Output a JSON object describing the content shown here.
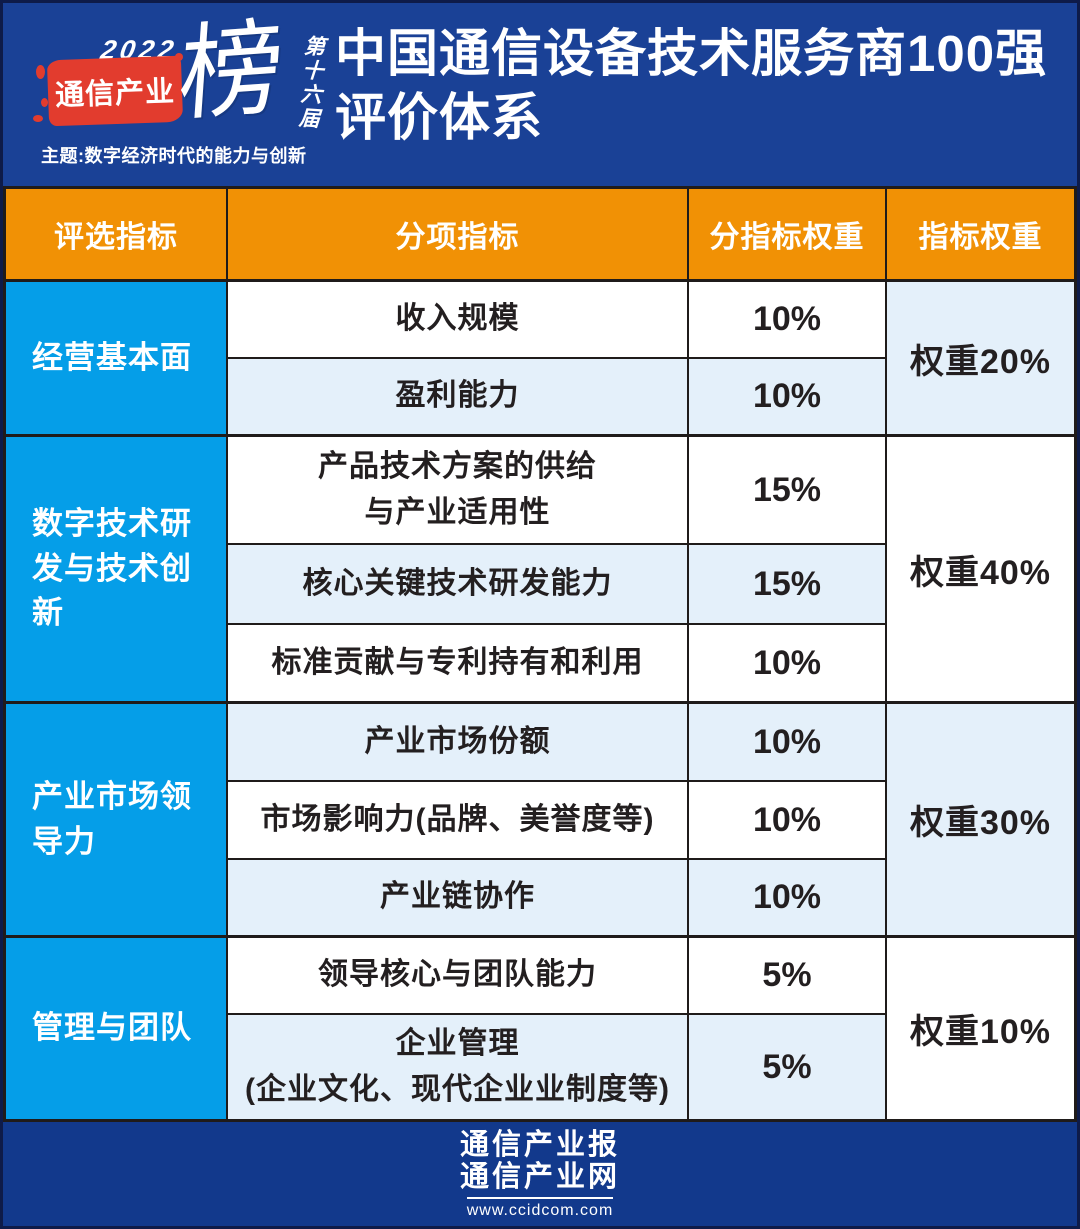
{
  "logo": {
    "year": "2022",
    "brand": "通信产业",
    "rank_char": "榜",
    "edition": "第十六届",
    "slogan": "主题:数字经济时代的能力与创新"
  },
  "title": {
    "line1": "中国通信设备技术服务商100强",
    "line2": "评价体系"
  },
  "table": {
    "headers": [
      "评选指标",
      "分项指标",
      "分指标权重",
      "指标权重"
    ],
    "groups": [
      {
        "category": "经营基本面",
        "weight": "权重20%",
        "rows": [
          {
            "label": "收入规模",
            "pct": "10%"
          },
          {
            "label": "盈利能力",
            "pct": "10%"
          }
        ]
      },
      {
        "category": "数字技术研发与技术创新",
        "weight": "权重40%",
        "rows": [
          {
            "label": "产品技术方案的供给\n与产业适用性",
            "pct": "15%"
          },
          {
            "label": "核心关键技术研发能力",
            "pct": "15%"
          },
          {
            "label": "标准贡献与专利持有和利用",
            "pct": "10%"
          }
        ]
      },
      {
        "category": "产业市场领导力",
        "weight": "权重30%",
        "rows": [
          {
            "label": "产业市场份额",
            "pct": "10%"
          },
          {
            "label": "市场影响力(品牌、美誉度等)",
            "pct": "10%"
          },
          {
            "label": "产业链协作",
            "pct": "10%"
          }
        ]
      },
      {
        "category": "管理与团队",
        "weight": "权重10%",
        "rows": [
          {
            "label": "领导核心与团队能力",
            "pct": "5%"
          },
          {
            "label": "企业管理\n(企业文化、现代企业业制度等)",
            "pct": "5%"
          }
        ]
      }
    ]
  },
  "chart_data": {
    "type": "table",
    "title": "中国通信设备技术服务商100强 评价体系",
    "columns": [
      "评选指标",
      "分项指标",
      "分指标权重",
      "指标权重"
    ],
    "rows": [
      [
        "经营基本面",
        "收入规模",
        "10%",
        "权重20%"
      ],
      [
        "经营基本面",
        "盈利能力",
        "10%",
        "权重20%"
      ],
      [
        "数字技术研发与技术创新",
        "产品技术方案的供给与产业适用性",
        "15%",
        "权重40%"
      ],
      [
        "数字技术研发与技术创新",
        "核心关键技术研发能力",
        "15%",
        "权重40%"
      ],
      [
        "数字技术研发与技术创新",
        "标准贡献与专利持有和利用",
        "10%",
        "权重40%"
      ],
      [
        "产业市场领导力",
        "产业市场份额",
        "10%",
        "权重30%"
      ],
      [
        "产业市场领导力",
        "市场影响力(品牌、美誉度等)",
        "10%",
        "权重30%"
      ],
      [
        "产业市场领导力",
        "产业链协作",
        "10%",
        "权重30%"
      ],
      [
        "管理与团队",
        "领导核心与团队能力",
        "5%",
        "权重10%"
      ],
      [
        "管理与团队",
        "企业管理(企业文化、现代企业业制度等)",
        "5%",
        "权重10%"
      ]
    ]
  },
  "footer": {
    "line1": "通信产业报",
    "line2": "通信产业网",
    "url": "www.ccidcom.com"
  },
  "colors": {
    "bg": "#1a4196",
    "footer_bg": "#12398c",
    "header_orange": "#f19105",
    "category_blue": "#059ee8",
    "row_alt": "#e4f0fa",
    "brush_red": "#e23c2e",
    "border_dark": "#1f1b1a",
    "text_dark": "#231f20"
  }
}
